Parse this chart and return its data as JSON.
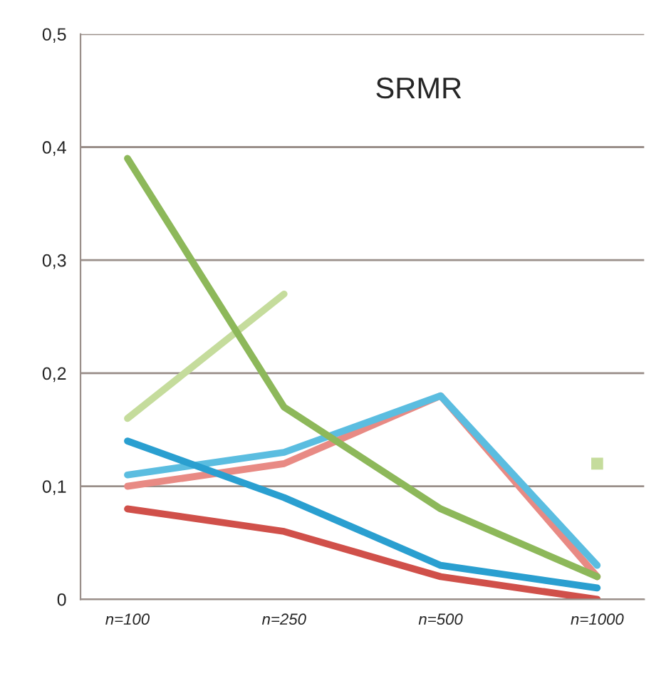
{
  "chart_data": {
    "type": "line",
    "title": "SRMR",
    "categories": [
      "n=100",
      "n=250",
      "n=500",
      "n=1000"
    ],
    "series": [
      {
        "color": "#c5dc9c",
        "values": [
          0.16,
          0.27,
          null,
          0.12
        ]
      },
      {
        "color": "#e88a84",
        "values": [
          0.1,
          0.12,
          0.18,
          0.02
        ]
      },
      {
        "color": "#5bbde0",
        "values": [
          0.11,
          0.13,
          0.18,
          0.03
        ]
      },
      {
        "color": "#8db85a",
        "values": [
          0.39,
          0.17,
          0.08,
          0.02
        ]
      },
      {
        "color": "#2a9fd0",
        "values": [
          0.14,
          0.09,
          0.03,
          0.01
        ]
      },
      {
        "color": "#d0504a",
        "values": [
          0.08,
          0.06,
          0.02,
          0.0
        ]
      }
    ],
    "ylim": [
      0,
      0.5
    ],
    "yticks": [
      {
        "value": 0,
        "label": "0"
      },
      {
        "value": 0.1,
        "label": "0,1"
      },
      {
        "value": 0.2,
        "label": "0,2"
      },
      {
        "value": 0.3,
        "label": "0,3"
      },
      {
        "value": 0.4,
        "label": "0,4"
      },
      {
        "value": 0.5,
        "label": "0,5"
      }
    ],
    "grid": "y"
  }
}
